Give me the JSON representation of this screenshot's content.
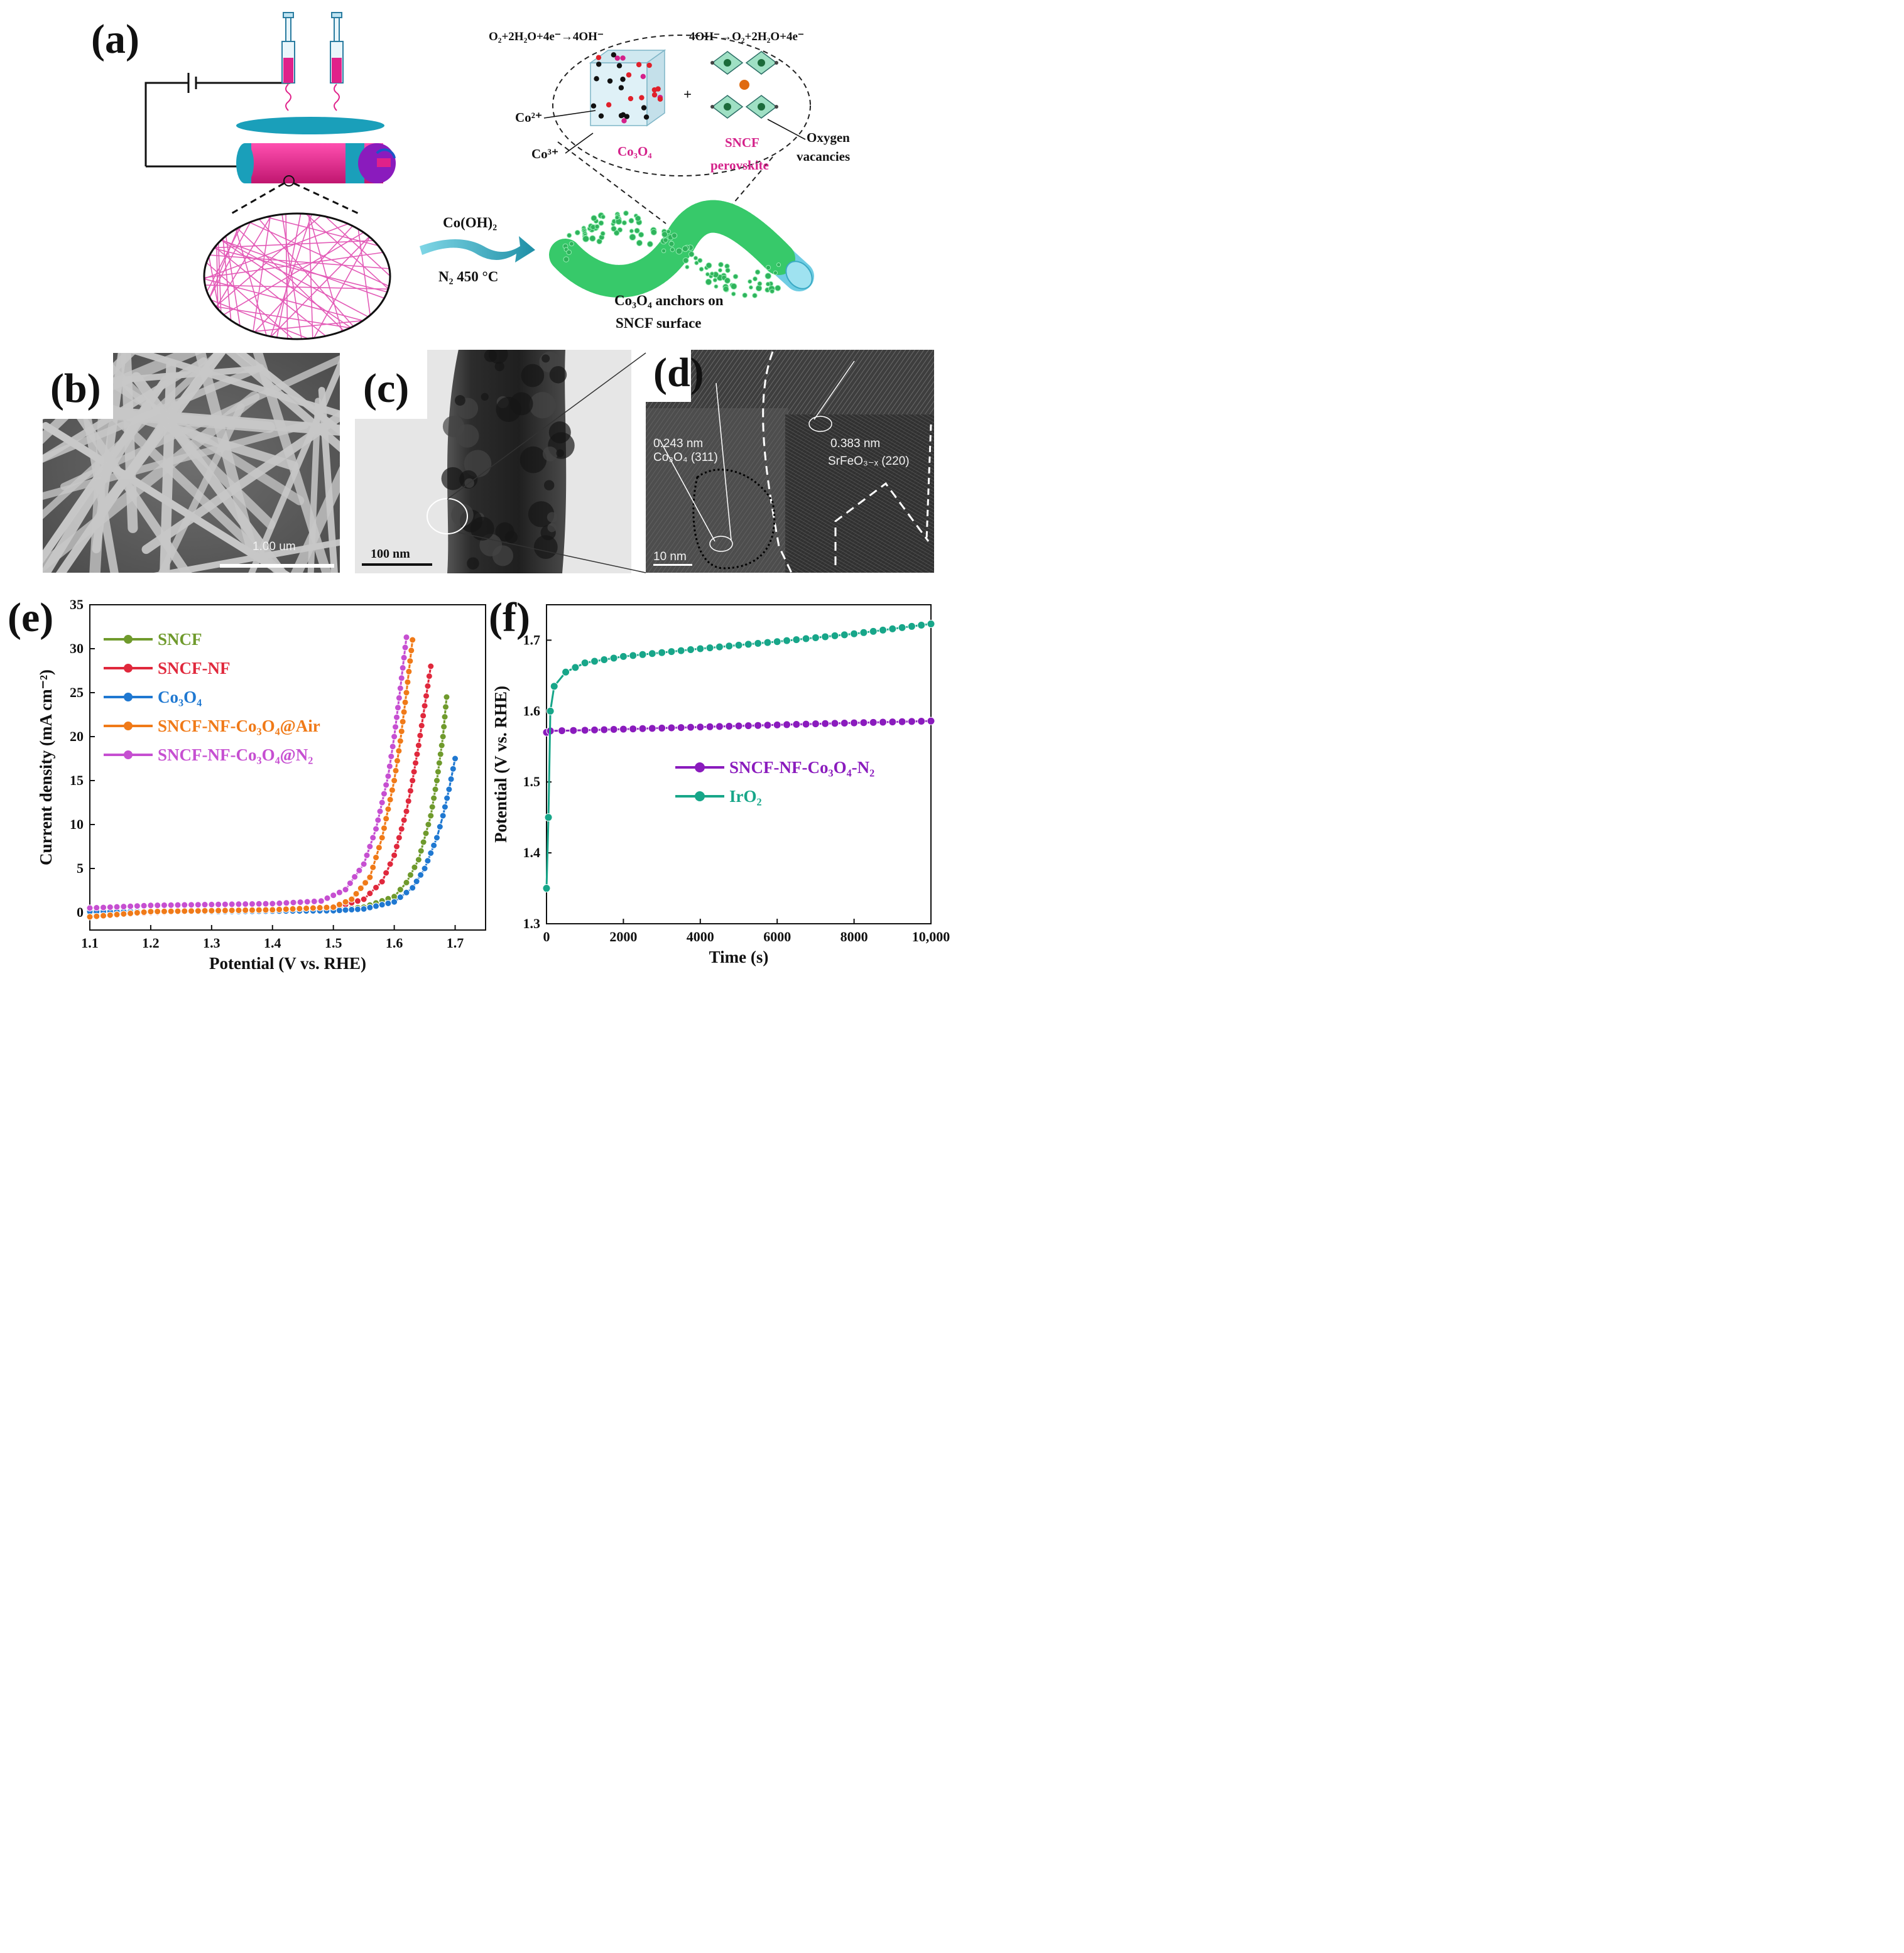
{
  "panels": {
    "a": {
      "label": "(a)"
    },
    "b": {
      "label": "(b)",
      "scale_bar": "1.00 um"
    },
    "c": {
      "label": "(c)",
      "scale_bar": "100 nm"
    },
    "d": {
      "label": "(d)",
      "scale_bar": "10 nm",
      "spacing_left": "0.243 nm",
      "plane_left": "Co₃O₄ (311)",
      "spacing_right": "0.383 nm",
      "plane_right": "SrFeO₃₋ₓ (220)"
    },
    "e": {
      "label": "(e)"
    },
    "f": {
      "label": "(f)"
    }
  },
  "schematic": {
    "orr_equation": "O₂+2H₂O+4e⁻→4OH⁻",
    "oer_equation": "4OH⁻→O₂+2H₂O+4e⁻",
    "co2_label": "Co²⁺",
    "co3_label": "Co³⁺",
    "co3o4_label": "Co₃O₄",
    "plus": "+",
    "sncf_label_1": "SNCF",
    "sncf_label_2": "perovskite",
    "vacancy_label_1": "Oxygen",
    "vacancy_label_2": "vacancies",
    "arrow_top": "Co(OH)₂",
    "arrow_bottom": "N₂ 450 °C",
    "product_line_1": "Co₃O₄ anchors  on",
    "product_line_2": "SNCF surface"
  },
  "colors": {
    "magenta": "#e0218a",
    "teal_plate": "#1a9fba",
    "purple": "#8a1bbd",
    "fiber_green": "#37c96a",
    "SNCF": "#6f9a2c",
    "SNCF-NF": "#e0283c",
    "Co3O4": "#1f78d1",
    "SNCF-NF-Co3O4@Air": "#f07a18",
    "SNCF-NF-Co3O4@N2": "#c64fd1",
    "stab_sncf": "#8a1bbd",
    "stab_iro2": "#17a689"
  },
  "chart_data": [
    {
      "panel": "e",
      "type": "line",
      "xlabel": "Potential (V vs. RHE)",
      "ylabel": "Current density (mA cm⁻²)",
      "xlim": [
        1.1,
        1.75
      ],
      "ylim": [
        -2,
        35
      ],
      "xticks": [
        "1.1",
        "1.2",
        "1.3",
        "1.4",
        "1.5",
        "1.6",
        "1.7"
      ],
      "yticks": [
        "0",
        "5",
        "10",
        "15",
        "20",
        "25",
        "30",
        "35"
      ],
      "legend_position": "upper-left",
      "series": [
        {
          "name": "SNCF",
          "color_key": "SNCF",
          "x": [
            1.1,
            1.2,
            1.3,
            1.4,
            1.5,
            1.55,
            1.6,
            1.62,
            1.64,
            1.66,
            1.67,
            1.68,
            1.686
          ],
          "y": [
            -0.3,
            0.0,
            0.1,
            0.2,
            0.3,
            0.6,
            1.8,
            3.4,
            6.0,
            11.0,
            15.0,
            20.0,
            24.5
          ]
        },
        {
          "name": "SNCF-NF",
          "color_key": "SNCF-NF",
          "x": [
            1.1,
            1.2,
            1.3,
            1.4,
            1.5,
            1.55,
            1.58,
            1.6,
            1.62,
            1.63,
            1.64,
            1.65,
            1.66
          ],
          "y": [
            -0.5,
            0.0,
            0.1,
            0.2,
            0.5,
            1.5,
            3.5,
            6.5,
            11.5,
            15.0,
            19.0,
            23.5,
            28.0
          ]
        },
        {
          "name": "Co₃O₄",
          "color_key": "Co3O4",
          "x": [
            1.1,
            1.2,
            1.3,
            1.4,
            1.5,
            1.55,
            1.6,
            1.63,
            1.65,
            1.67,
            1.68,
            1.69,
            1.7
          ],
          "y": [
            0.1,
            0.1,
            0.1,
            0.15,
            0.2,
            0.4,
            1.2,
            2.8,
            5.0,
            8.5,
            11.0,
            14.0,
            17.5
          ]
        },
        {
          "name": "SNCF-NF-Co₃O₄@Air",
          "color_key": "SNCF-NF-Co3O4@Air",
          "x": [
            1.1,
            1.2,
            1.3,
            1.4,
            1.5,
            1.53,
            1.56,
            1.58,
            1.6,
            1.61,
            1.62,
            1.63
          ],
          "y": [
            -0.5,
            0.1,
            0.2,
            0.3,
            0.6,
            1.5,
            4.0,
            8.5,
            15.0,
            19.5,
            25.0,
            31.0
          ]
        },
        {
          "name": "SNCF-NF-Co₃O₄@N₂",
          "color_key": "SNCF-NF-Co3O4@N2",
          "x": [
            1.1,
            1.2,
            1.3,
            1.4,
            1.48,
            1.52,
            1.55,
            1.57,
            1.59,
            1.6,
            1.61,
            1.62
          ],
          "y": [
            0.5,
            0.8,
            0.9,
            1.0,
            1.3,
            2.6,
            5.5,
            9.5,
            15.5,
            20.0,
            25.5,
            31.3
          ]
        }
      ]
    },
    {
      "panel": "f",
      "type": "line",
      "xlabel": "Time (s)",
      "ylabel": "Potential (V vs. RHE)",
      "xlim": [
        0,
        10000
      ],
      "ylim": [
        1.3,
        1.75
      ],
      "xticks": [
        "0",
        "2000",
        "4000",
        "6000",
        "8000",
        "10,000"
      ],
      "yticks": [
        "1.3",
        "1.4",
        "1.5",
        "1.6",
        "1.7"
      ],
      "legend_position": "center-right",
      "series": [
        {
          "name": "SNCF-NF-Co₃O₄-N₂",
          "color_key": "stab_sncf",
          "x": [
            0,
            100,
            1000,
            3000,
            5000,
            7000,
            10000
          ],
          "y": [
            1.57,
            1.572,
            1.573,
            1.576,
            1.579,
            1.582,
            1.586
          ]
        },
        {
          "name": "IrO₂",
          "color_key": "stab_iro2",
          "x": [
            0,
            50,
            100,
            200,
            500,
            1000,
            2000,
            4000,
            6000,
            8000,
            10000
          ],
          "y": [
            1.35,
            1.45,
            1.6,
            1.635,
            1.655,
            1.668,
            1.677,
            1.688,
            1.698,
            1.709,
            1.723
          ]
        }
      ]
    }
  ]
}
